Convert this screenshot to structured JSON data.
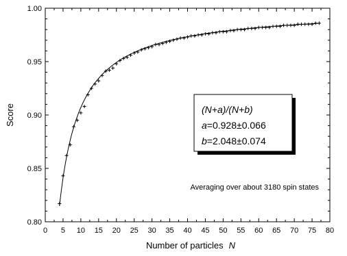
{
  "chart_data": {
    "type": "scatter",
    "xlabel": "Number of particles",
    "xlabel_var": "N",
    "ylabel": "Score",
    "xlim": [
      0,
      80
    ],
    "ylim": [
      0.8,
      1.0
    ],
    "x_ticks": [
      "0",
      "5",
      "10",
      "15",
      "20",
      "25",
      "30",
      "35",
      "40",
      "45",
      "50",
      "55",
      "60",
      "65",
      "70",
      "75",
      "80"
    ],
    "y_ticks": [
      "0.80",
      "0.85",
      "0.90",
      "0.95",
      "1.00"
    ],
    "grid": false,
    "series": [
      {
        "marker": "plus",
        "x": [
          4,
          5,
          6,
          7,
          8,
          9,
          10,
          11,
          12,
          13,
          14,
          15,
          16,
          17,
          18,
          19,
          20,
          21,
          22,
          23,
          24,
          25,
          26,
          27,
          28,
          29,
          30,
          31,
          32,
          33,
          34,
          35,
          36,
          37,
          38,
          39,
          40,
          41,
          42,
          43,
          44,
          45,
          46,
          47,
          48,
          49,
          50,
          51,
          52,
          53,
          54,
          55,
          56,
          57,
          58,
          59,
          60,
          61,
          62,
          63,
          64,
          65,
          66,
          67,
          68,
          69,
          70,
          71,
          72,
          73,
          74,
          75,
          76,
          77
        ],
        "y": [
          0.817,
          0.843,
          0.862,
          0.872,
          0.889,
          0.895,
          0.902,
          0.908,
          0.919,
          0.925,
          0.929,
          0.932,
          0.937,
          0.941,
          0.942,
          0.944,
          0.948,
          0.951,
          0.953,
          0.954,
          0.956,
          0.958,
          0.959,
          0.961,
          0.962,
          0.963,
          0.964,
          0.966,
          0.966,
          0.967,
          0.968,
          0.969,
          0.97,
          0.971,
          0.972,
          0.972,
          0.973,
          0.974,
          0.974,
          0.975,
          0.975,
          0.976,
          0.976,
          0.977,
          0.977,
          0.978,
          0.978,
          0.978,
          0.979,
          0.979,
          0.98,
          0.98,
          0.98,
          0.981,
          0.981,
          0.981,
          0.982,
          0.982,
          0.982,
          0.982,
          0.983,
          0.983,
          0.983,
          0.984,
          0.984,
          0.984,
          0.984,
          0.985,
          0.985,
          0.985,
          0.985,
          0.985,
          0.986,
          0.986
        ]
      }
    ],
    "fit": {
      "formula": "(N+a)/(N+b)",
      "a": 0.928,
      "b": 2.048,
      "x_range": [
        4,
        77
      ]
    },
    "legend": {
      "line1": "(N+a)/(N+b)",
      "line2_var": "a",
      "line2_val": "=0.928±0.066",
      "line3_var": "b",
      "line3_val": "=2.048±0.074"
    },
    "annotation": "Averaging over about 3180 spin states"
  }
}
